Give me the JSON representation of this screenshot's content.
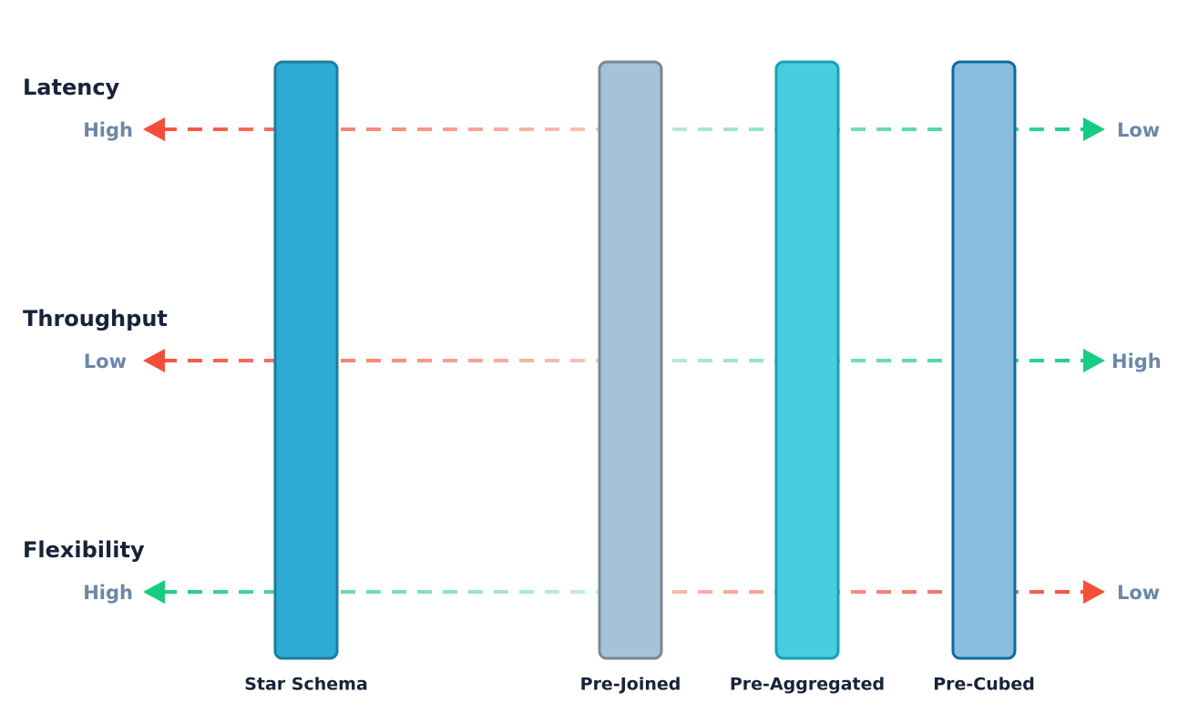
{
  "rows": [
    {
      "label": "Latency",
      "left": "High",
      "right": "Low"
    },
    {
      "label": "Throughput",
      "left": "Low",
      "right": "High"
    },
    {
      "label": "Flexibility",
      "left": "High",
      "right": "Low"
    }
  ],
  "columns": [
    {
      "label": "Star Schema"
    },
    {
      "label": "Pre-Joined"
    },
    {
      "label": "Pre-Aggregated"
    },
    {
      "label": "Pre-Cubed"
    }
  ]
}
